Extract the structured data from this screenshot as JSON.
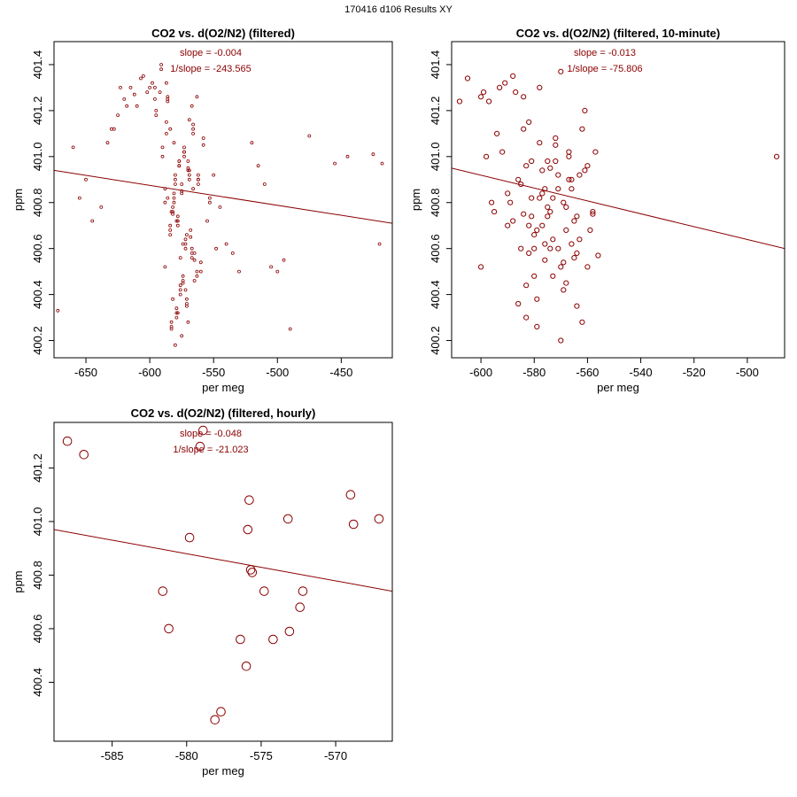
{
  "figure_title": "170416   d106   Results XY",
  "colors": {
    "series": "#8b0000",
    "axes": "#000000"
  },
  "chart_data": [
    {
      "type": "scatter",
      "title": "CO2 vs. d(O2/N2) (filtered)",
      "xlabel": "per meg",
      "ylabel": "ppm",
      "xlim": [
        -675,
        -410
      ],
      "ylim": [
        400.125,
        401.5
      ],
      "xticks": [
        -650,
        -600,
        -550,
        -500,
        -450
      ],
      "yticks": [
        400.2,
        400.4,
        400.6,
        400.8,
        401.0,
        401.2,
        401.4
      ],
      "xtick_labels": [
        "-650",
        "-600",
        "-550",
        "-500",
        "-450"
      ],
      "ytick_labels": [
        "400.2",
        "400.4",
        "400.6",
        "400.8",
        "401.0",
        "401.2",
        "401.4"
      ],
      "annotations": [
        "slope = -0.004",
        "1/slope = -243.565"
      ],
      "fit_line": {
        "x": [
          -675,
          -410
        ],
        "y": [
          400.94,
          400.71
        ]
      },
      "marker_size": "small",
      "points": {
        "x": [
          -580,
          -575,
          -570,
          -578,
          -582,
          -572,
          -565,
          -588,
          -590,
          -568,
          -560,
          -595,
          -600,
          -576,
          -574,
          -571,
          -579,
          -583,
          -586,
          -566,
          -562,
          -555,
          -592,
          -598,
          -605,
          -550,
          -545,
          -610,
          -615,
          -620,
          -625,
          -630,
          -540,
          -535,
          -530,
          -577,
          -573,
          -581,
          -584,
          -569,
          -567,
          -563,
          -587,
          -591,
          -596,
          -558,
          -553,
          -548,
          -602,
          -607,
          -612,
          -618,
          -623,
          -628,
          -633,
          -638,
          -645,
          -650,
          -655,
          -660,
          -672,
          -520,
          -515,
          -510,
          -505,
          -500,
          -495,
          -490,
          -475,
          -455,
          -445,
          -425,
          -420,
          -418,
          -580,
          -575,
          -570,
          -578,
          -582,
          -572,
          -565,
          -588,
          -576,
          -574,
          -571,
          -579,
          -583,
          -586,
          -566,
          -562,
          -577,
          -573,
          -581,
          -584,
          -569,
          -567,
          -563,
          -587,
          -580,
          -575,
          -570,
          -578,
          -582,
          -572,
          -565,
          -588,
          -590,
          -568,
          -560,
          -595,
          -576,
          -574,
          -571,
          -579,
          -583,
          -586,
          -566,
          -562,
          -577,
          -573,
          -581,
          -584,
          -569,
          -567,
          -563,
          -587,
          -591,
          -596,
          -558,
          -553,
          -580,
          -575,
          -570,
          -578,
          -582,
          -572,
          -576,
          -574,
          -571,
          -579,
          -583,
          -586,
          -566,
          -562,
          -577,
          -573,
          -581,
          -584,
          -569,
          -567
        ],
        "y": [
          400.9,
          400.85,
          400.95,
          400.7,
          400.75,
          400.6,
          400.55,
          400.8,
          401.0,
          400.65,
          400.5,
          401.2,
          401.3,
          400.4,
          400.45,
          400.35,
          400.3,
          400.25,
          401.25,
          401.1,
          400.88,
          400.72,
          401.28,
          401.32,
          401.35,
          400.92,
          400.78,
          401.22,
          401.3,
          401.25,
          401.18,
          401.12,
          400.62,
          400.58,
          400.5,
          400.98,
          401.02,
          400.82,
          400.68,
          400.92,
          400.58,
          400.48,
          401.15,
          401.38,
          401.25,
          401.05,
          400.8,
          400.6,
          401.28,
          401.34,
          401.27,
          401.22,
          401.3,
          401.12,
          401.06,
          400.78,
          400.72,
          400.9,
          400.82,
          401.04,
          400.33,
          401.06,
          400.96,
          400.88,
          400.52,
          400.5,
          400.55,
          400.25,
          401.09,
          400.97,
          401.0,
          401.01,
          400.62,
          400.97,
          400.18,
          400.22,
          400.28,
          400.32,
          400.38,
          400.42,
          400.46,
          400.52,
          400.56,
          400.62,
          400.66,
          400.72,
          400.76,
          400.82,
          400.86,
          400.92,
          400.96,
          401.02,
          401.06,
          401.12,
          401.16,
          401.22,
          401.26,
          401.32,
          400.88,
          400.84,
          400.94,
          400.74,
          400.78,
          400.64,
          400.58,
          400.86,
          401.04,
          400.68,
          400.54,
          401.18,
          400.44,
          400.48,
          400.38,
          400.34,
          400.28,
          401.24,
          401.14,
          400.9,
          400.98,
          401.0,
          400.8,
          400.7,
          400.9,
          400.6,
          400.5,
          401.1,
          401.4,
          401.3,
          401.08,
          400.82,
          400.92,
          400.88,
          400.98,
          400.72,
          400.76,
          400.62,
          400.42,
          400.46,
          400.36,
          400.32,
          400.26,
          401.26,
          401.12,
          400.9,
          400.96,
          401.04,
          400.84,
          400.66,
          400.94,
          400.56
        ]
      }
    },
    {
      "type": "scatter",
      "title": "CO2 vs. d(O2/N2) (filtered, 10-minute)",
      "xlabel": "per meg",
      "ylabel": "ppm",
      "xlim": [
        -611,
        -486
      ],
      "ylim": [
        400.125,
        401.5
      ],
      "xticks": [
        -600,
        -580,
        -560,
        -540,
        -520,
        -500
      ],
      "yticks": [
        400.2,
        400.4,
        400.6,
        400.8,
        401.0,
        401.2,
        401.4
      ],
      "xtick_labels": [
        "-600",
        "-580",
        "-560",
        "-540",
        "-520",
        "-500"
      ],
      "ytick_labels": [
        "400.2",
        "400.4",
        "400.6",
        "400.8",
        "401.0",
        "401.2",
        "401.4"
      ],
      "annotations": [
        "slope = -0.013",
        "1/slope = -75.806"
      ],
      "fit_line": {
        "x": [
          -611,
          -486
        ],
        "y": [
          400.95,
          400.6
        ]
      },
      "marker_size": "medium",
      "points": {
        "x": [
          -608,
          -605,
          -600,
          -598,
          -596,
          -593,
          -590,
          -588,
          -586,
          -584,
          -582,
          -580,
          -578,
          -576,
          -574,
          -572,
          -570,
          -568,
          -566,
          -564,
          -562,
          -560,
          -558,
          -556,
          -600,
          -597,
          -594,
          -591,
          -589,
          -587,
          -585,
          -583,
          -581,
          -579,
          -577,
          -575,
          -573,
          -571,
          -569,
          -567,
          -565,
          -563,
          -561,
          -559,
          -557,
          -599,
          -595,
          -592,
          -590,
          -588,
          -586,
          -584,
          -582,
          -580,
          -578,
          -576,
          -574,
          -572,
          -570,
          -568,
          -566,
          -564,
          -562,
          -560,
          -558,
          -585,
          -583,
          -581,
          -579,
          -577,
          -575,
          -573,
          -571,
          -569,
          -567,
          -565,
          -563,
          -561,
          -584,
          -582,
          -580,
          -578,
          -576,
          -574,
          -572,
          -570,
          -568,
          -566,
          -564,
          -583,
          -581,
          -579,
          -577,
          -575,
          -573,
          -571,
          -569,
          -567,
          -489
        ],
        "y": [
          401.24,
          401.34,
          401.26,
          401.0,
          400.8,
          401.3,
          400.7,
          401.35,
          400.9,
          400.75,
          401.15,
          400.6,
          401.3,
          400.55,
          400.95,
          401.05,
          401.37,
          400.45,
          400.62,
          400.35,
          401.12,
          400.52,
          400.75,
          400.57,
          400.52,
          401.24,
          401.1,
          401.32,
          400.8,
          401.28,
          400.88,
          400.96,
          400.74,
          400.68,
          400.84,
          400.98,
          400.48,
          400.92,
          400.8,
          401.0,
          400.72,
          400.64,
          401.2,
          400.68,
          401.02,
          401.28,
          400.76,
          401.02,
          400.84,
          400.72,
          400.36,
          401.26,
          400.58,
          400.66,
          400.82,
          400.86,
          400.6,
          401.08,
          400.52,
          400.78,
          400.9,
          400.58,
          400.28,
          400.96,
          400.76,
          400.6,
          400.44,
          400.98,
          400.26,
          400.94,
          400.74,
          400.82,
          400.6,
          400.42,
          401.02,
          400.56,
          400.92,
          400.94,
          401.12,
          400.7,
          400.48,
          401.06,
          400.62,
          400.76,
          400.98,
          400.2,
          400.68,
          400.86,
          400.74,
          400.3,
          400.82,
          400.38,
          400.7,
          400.78,
          400.64,
          400.86,
          400.54,
          400.9,
          401.0
        ]
      }
    },
    {
      "type": "scatter",
      "title": "CO2 vs. d(O2/N2) (filtered, hourly)",
      "xlabel": "per meg",
      "ylabel": "ppm",
      "xlim": [
        -588.9,
        -566.2
      ],
      "ylim": [
        400.18,
        401.37
      ],
      "xticks": [
        -585,
        -580,
        -575,
        -570
      ],
      "yticks": [
        400.4,
        400.6,
        400.8,
        401.0,
        401.2
      ],
      "xtick_labels": [
        "-585",
        "-580",
        "-575",
        "-570"
      ],
      "ytick_labels": [
        "400.4",
        "400.6",
        "400.8",
        "401.0",
        "401.2"
      ],
      "annotations": [
        "slope = -0.048",
        "1/slope = -21.023"
      ],
      "fit_line": {
        "x": [
          -588.9,
          -566.2
        ],
        "y": [
          400.97,
          400.74
        ]
      },
      "marker_size": "large",
      "points": {
        "x": [
          -588.0,
          -586.9,
          -581.6,
          -581.2,
          -579.8,
          -579.1,
          -578.9,
          -578.1,
          -577.7,
          -576.4,
          -576.0,
          -575.9,
          -575.8,
          -575.7,
          -575.6,
          -574.8,
          -574.2,
          -573.2,
          -573.1,
          -572.4,
          -572.2,
          -569.0,
          -568.8,
          -567.1
        ],
        "y": [
          401.3,
          401.25,
          400.74,
          400.6,
          400.94,
          401.28,
          401.34,
          400.26,
          400.29,
          400.56,
          400.46,
          400.97,
          401.08,
          400.82,
          400.81,
          400.74,
          400.56,
          401.01,
          400.59,
          400.68,
          400.74,
          401.1,
          400.99,
          401.01
        ]
      }
    }
  ]
}
